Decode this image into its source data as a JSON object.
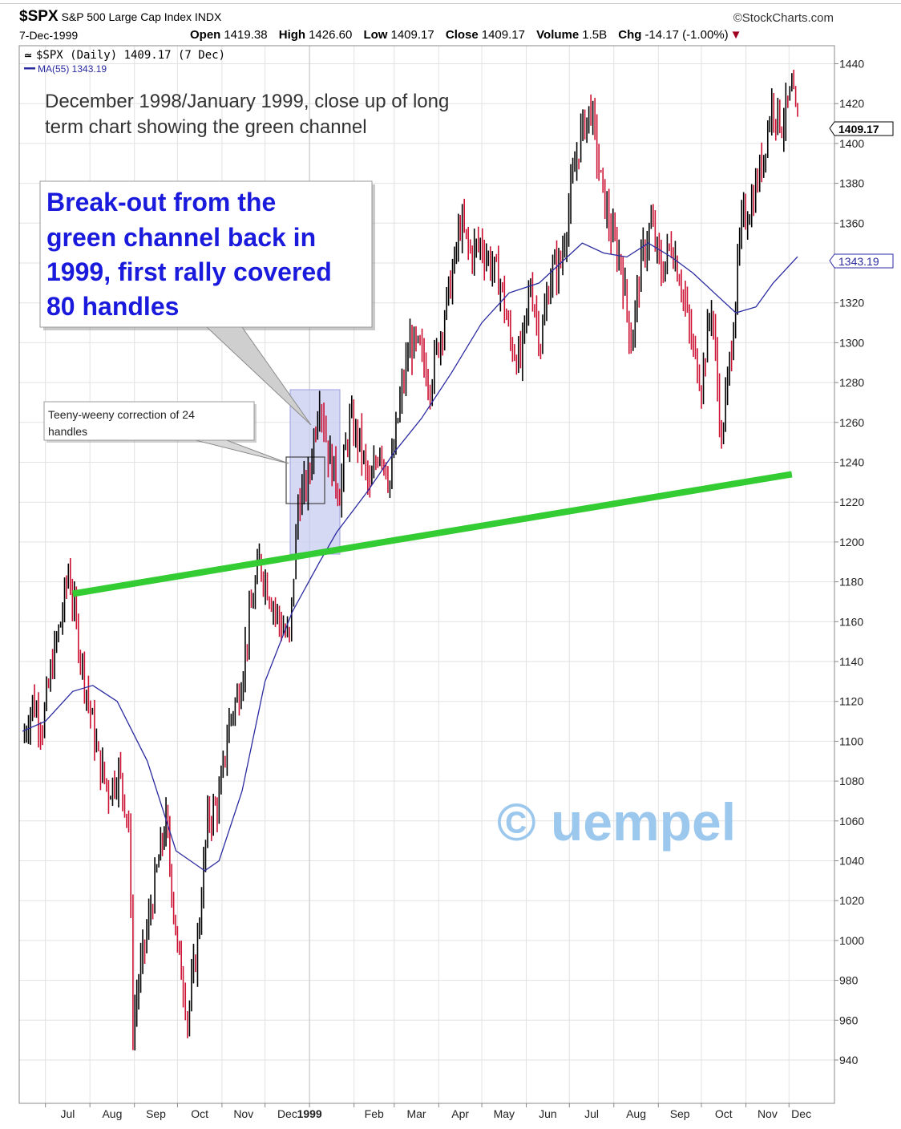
{
  "header": {
    "symbol": "$SPX",
    "name": "S&P 500 Large Cap Index INDX",
    "brand": "©StockCharts.com",
    "date": "7-Dec-1999",
    "open_label": "Open",
    "open": "1419.38",
    "high_label": "High",
    "high": "1426.60",
    "low_label": "Low",
    "low": "1409.17",
    "close_label": "Close",
    "close": "1409.17",
    "volume_label": "Volume",
    "volume": "1.5B",
    "chg_label": "Chg",
    "chg": "-14.17 (-1.00%)",
    "down_marker": "▼"
  },
  "legend": {
    "price": "$SPX (Daily) 1409.17 (7 Dec)",
    "ma": "MA(55) 1343.19"
  },
  "annotations": {
    "title_line1": "December 1998/January 1999, close up of long",
    "title_line2": "term chart showing the green channel",
    "breakout_line1": "Break-out from the",
    "breakout_line2": "green channel back in",
    "breakout_line3": "1999, first rally covered",
    "breakout_line4": "80 handles",
    "correction_line1": "Teeny-weeny correction of 24",
    "correction_line2": "handles",
    "watermark": "© uempel"
  },
  "colors": {
    "up": "#000000",
    "down": "#cc1133",
    "ma": "#2a2aa0",
    "channel": "#33cc33",
    "annotation_blue": "#1a1add",
    "watermark": "#9cc8ee",
    "highlight": "#c8ccf0"
  },
  "chart_data": {
    "type": "line",
    "title": "$SPX (Daily) 1409.17 (7 Dec)",
    "x_tick_labels": [
      "Jul",
      "Aug",
      "Sep",
      "Oct",
      "Nov",
      "Dec",
      "1999",
      "Feb",
      "Mar",
      "Apr",
      "May",
      "Jun",
      "Jul",
      "Aug",
      "Sep",
      "Oct",
      "Nov",
      "Dec"
    ],
    "x_range": [
      "1998-06-15",
      "1999-12-07"
    ],
    "y_ticks": [
      940,
      960,
      980,
      1000,
      1020,
      1040,
      1060,
      1080,
      1100,
      1120,
      1140,
      1160,
      1180,
      1200,
      1220,
      1240,
      1260,
      1280,
      1300,
      1320,
      1340,
      1360,
      1380,
      1400,
      1420,
      1440
    ],
    "ylim": [
      925,
      1450
    ],
    "y_axis_side": "right",
    "grid": true,
    "last_price_label": "1409.17",
    "ma_label": "1343.19",
    "series": [
      {
        "name": "$SPX (Daily)",
        "style": "price",
        "x": [
          "1998-06-15",
          "1998-06-22",
          "1998-06-29",
          "1998-07-06",
          "1998-07-13",
          "1998-07-17",
          "1998-07-24",
          "1998-07-31",
          "1998-08-07",
          "1998-08-14",
          "1998-08-21",
          "1998-08-28",
          "1998-08-31",
          "1998-09-04",
          "1998-09-11",
          "1998-09-18",
          "1998-09-23",
          "1998-10-01",
          "1998-10-05",
          "1998-10-08",
          "1998-10-15",
          "1998-10-22",
          "1998-10-30",
          "1998-11-06",
          "1998-11-13",
          "1998-11-20",
          "1998-11-27",
          "1998-12-04",
          "1998-12-11",
          "1998-12-18",
          "1998-12-24",
          "1998-12-31",
          "1999-01-08",
          "1999-01-14",
          "1999-01-22",
          "1999-01-29",
          "1999-02-05",
          "1999-02-12",
          "1999-02-19",
          "1999-02-26",
          "1999-03-05",
          "1999-03-12",
          "1999-03-19",
          "1999-03-26",
          "1999-04-01",
          "1999-04-12",
          "1999-04-16",
          "1999-04-23",
          "1999-04-30",
          "1999-05-07",
          "1999-05-14",
          "1999-05-21",
          "1999-05-28",
          "1999-06-04",
          "1999-06-11",
          "1999-06-18",
          "1999-06-25",
          "1999-07-02",
          "1999-07-09",
          "1999-07-16",
          "1999-07-23",
          "1999-07-30",
          "1999-08-06",
          "1999-08-13",
          "1999-08-20",
          "1999-08-27",
          "1999-09-03",
          "1999-09-10",
          "1999-09-17",
          "1999-09-24",
          "1999-10-01",
          "1999-10-08",
          "1999-10-15",
          "1999-10-22",
          "1999-10-29",
          "1999-11-05",
          "1999-11-12",
          "1999-11-19",
          "1999-11-26",
          "1999-12-03",
          "1999-12-07"
        ],
        "y": [
          1100,
          1120,
          1108,
          1140,
          1165,
          1186,
          1150,
          1120,
          1090,
          1075,
          1085,
          1060,
          957,
          980,
          1010,
          1040,
          1060,
          995,
          980,
          960,
          1000,
          1060,
          1070,
          1110,
          1125,
          1160,
          1190,
          1175,
          1160,
          1150,
          1220,
          1230,
          1275,
          1245,
          1225,
          1260,
          1250,
          1225,
          1250,
          1230,
          1270,
          1300,
          1295,
          1280,
          1300,
          1340,
          1360,
          1345,
          1350,
          1340,
          1330,
          1300,
          1290,
          1330,
          1300,
          1335,
          1340,
          1375,
          1405,
          1418,
          1380,
          1355,
          1340,
          1300,
          1340,
          1360,
          1335,
          1350,
          1330,
          1300,
          1280,
          1320,
          1250,
          1300,
          1360,
          1370,
          1390,
          1420,
          1410,
          1425,
          1409.17
        ]
      },
      {
        "name": "MA(55)",
        "style": "ma",
        "x": [
          "1998-06-15",
          "1998-07-01",
          "1998-07-20",
          "1998-08-03",
          "1998-08-20",
          "1998-09-10",
          "1998-09-30",
          "1998-10-20",
          "1998-10-30",
          "1998-11-15",
          "1998-12-01",
          "1998-12-20",
          "1999-01-08",
          "1999-01-20",
          "1999-02-10",
          "1999-03-01",
          "1999-03-20",
          "1999-04-10",
          "1999-05-01",
          "1999-05-20",
          "1999-06-10",
          "1999-06-25",
          "1999-07-10",
          "1999-07-25",
          "1999-08-10",
          "1999-08-25",
          "1999-09-10",
          "1999-09-25",
          "1999-10-10",
          "1999-10-25",
          "1999-11-08",
          "1999-11-20",
          "1999-12-07"
        ],
        "y": [
          1105,
          1110,
          1125,
          1128,
          1120,
          1090,
          1045,
          1035,
          1040,
          1075,
          1130,
          1165,
          1190,
          1205,
          1225,
          1245,
          1262,
          1285,
          1310,
          1325,
          1330,
          1340,
          1350,
          1345,
          1343,
          1350,
          1343,
          1335,
          1325,
          1315,
          1318,
          1330,
          1343.19
        ]
      },
      {
        "name": "",
        "style": "channel",
        "x": [
          "1998-07-20",
          "1999-12-03"
        ],
        "y": [
          1174,
          1234
        ]
      }
    ]
  }
}
